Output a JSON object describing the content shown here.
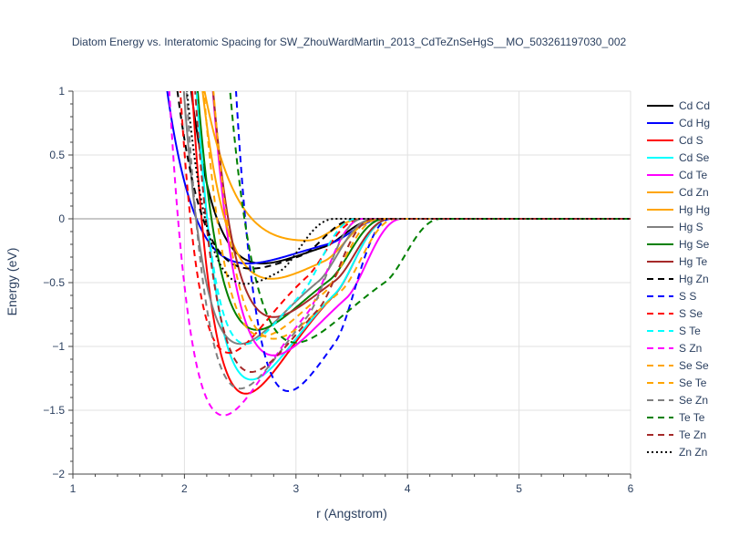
{
  "chart_data": {
    "type": "line",
    "title": "Diatom Energy vs. Interatomic Spacing for SW_ZhouWardMartin_2013_CdTeZnSeHgS__MO_503261197030_002",
    "xlabel": "r (Angstrom)",
    "ylabel": "Energy (eV)",
    "xlim": [
      1,
      6
    ],
    "ylim": [
      -2,
      1
    ],
    "x_ticks": [
      1,
      2,
      3,
      4,
      5,
      6
    ],
    "y_ticks": [
      -2,
      -1.5,
      -1,
      -0.5,
      0,
      0.5,
      1
    ],
    "x_tick_labels": [
      "1",
      "2",
      "3",
      "4",
      "5",
      "6"
    ],
    "y_tick_labels": [
      "−2",
      "−1.5",
      "−1",
      "−0.5",
      "0",
      "0.5",
      "1"
    ],
    "grid": true,
    "legend_position": "right",
    "series": [
      {
        "name": "Cd Cd",
        "color": "#000000",
        "dash": "solid",
        "r0": 2.7,
        "depth": 0.35,
        "a": 1.7,
        "rc": 3.75
      },
      {
        "name": "Cd Hg",
        "color": "#0000ff",
        "dash": "solid",
        "r0": 2.57,
        "depth": 0.35,
        "a": 1.5,
        "rc": 3.8
      },
      {
        "name": "Cd S",
        "color": "#ff0000",
        "dash": "solid",
        "r0": 2.55,
        "depth": 1.37,
        "a": 1.75,
        "rc": 3.85
      },
      {
        "name": "Cd Se",
        "color": "#00ffff",
        "dash": "solid",
        "r0": 2.6,
        "depth": 1.26,
        "a": 1.75,
        "rc": 3.85
      },
      {
        "name": "Cd Te",
        "color": "#ff00ff",
        "dash": "solid",
        "r0": 2.8,
        "depth": 1.07,
        "a": 1.6,
        "rc": 3.95
      },
      {
        "name": "Cd Zn",
        "color": "#ffa500",
        "dash": "solid",
        "r0": 2.78,
        "depth": 0.47,
        "a": 1.65,
        "rc": 3.75
      },
      {
        "name": "Hg Hg",
        "color": "#ffa500",
        "dash": "solid",
        "r0": 3.1,
        "depth": 0.17,
        "a": 1.4,
        "rc": 3.6
      },
      {
        "name": "Hg S",
        "color": "#808080",
        "dash": "solid",
        "r0": 2.5,
        "depth": 0.98,
        "a": 1.75,
        "rc": 3.7
      },
      {
        "name": "Hg Se",
        "color": "#008000",
        "dash": "solid",
        "r0": 2.65,
        "depth": 0.87,
        "a": 1.7,
        "rc": 3.8
      },
      {
        "name": "Hg Te",
        "color": "#a52a2a",
        "dash": "solid",
        "r0": 2.8,
        "depth": 0.77,
        "a": 1.7,
        "rc": 3.85
      },
      {
        "name": "Hg Zn",
        "color": "#000000",
        "dash": "dash",
        "r0": 2.6,
        "depth": 0.39,
        "a": 1.6,
        "rc": 3.55
      },
      {
        "name": "S S",
        "color": "#0000ff",
        "dash": "dash",
        "r0": 2.93,
        "depth": 1.35,
        "a": 1.8,
        "rc": 3.85
      },
      {
        "name": "S Se",
        "color": "#ff0000",
        "dash": "dash",
        "r0": 2.4,
        "depth": 1.05,
        "a": 2.0,
        "rc": 3.6
      },
      {
        "name": "S Te",
        "color": "#00ffff",
        "dash": "dash",
        "r0": 2.55,
        "depth": 0.98,
        "a": 2.0,
        "rc": 3.55
      },
      {
        "name": "S Zn",
        "color": "#ff00ff",
        "dash": "dash",
        "r0": 2.35,
        "depth": 1.54,
        "a": 1.7,
        "rc": 3.6
      },
      {
        "name": "Se Se",
        "color": "#ffa500",
        "dash": "dash",
        "r0": 2.8,
        "depth": 0.94,
        "a": 1.65,
        "rc": 3.9
      },
      {
        "name": "Se Te",
        "color": "#ffa500",
        "dash": "dash",
        "r0": 2.7,
        "depth": 0.92,
        "a": 1.7,
        "rc": 3.75
      },
      {
        "name": "Se Zn",
        "color": "#808080",
        "dash": "dash",
        "r0": 2.5,
        "depth": 1.33,
        "a": 1.75,
        "rc": 3.6
      },
      {
        "name": "Te Te",
        "color": "#008000",
        "dash": "dash",
        "r0": 3.0,
        "depth": 0.97,
        "a": 1.5,
        "rc": 4.3
      },
      {
        "name": "Te Zn",
        "color": "#a52a2a",
        "dash": "dash",
        "r0": 2.6,
        "depth": 1.2,
        "a": 1.7,
        "rc": 3.7
      },
      {
        "name": "Zn Zn",
        "color": "#000000",
        "dash": "dot",
        "r0": 2.55,
        "depth": 0.51,
        "a": 1.9,
        "rc": 3.35
      }
    ]
  }
}
